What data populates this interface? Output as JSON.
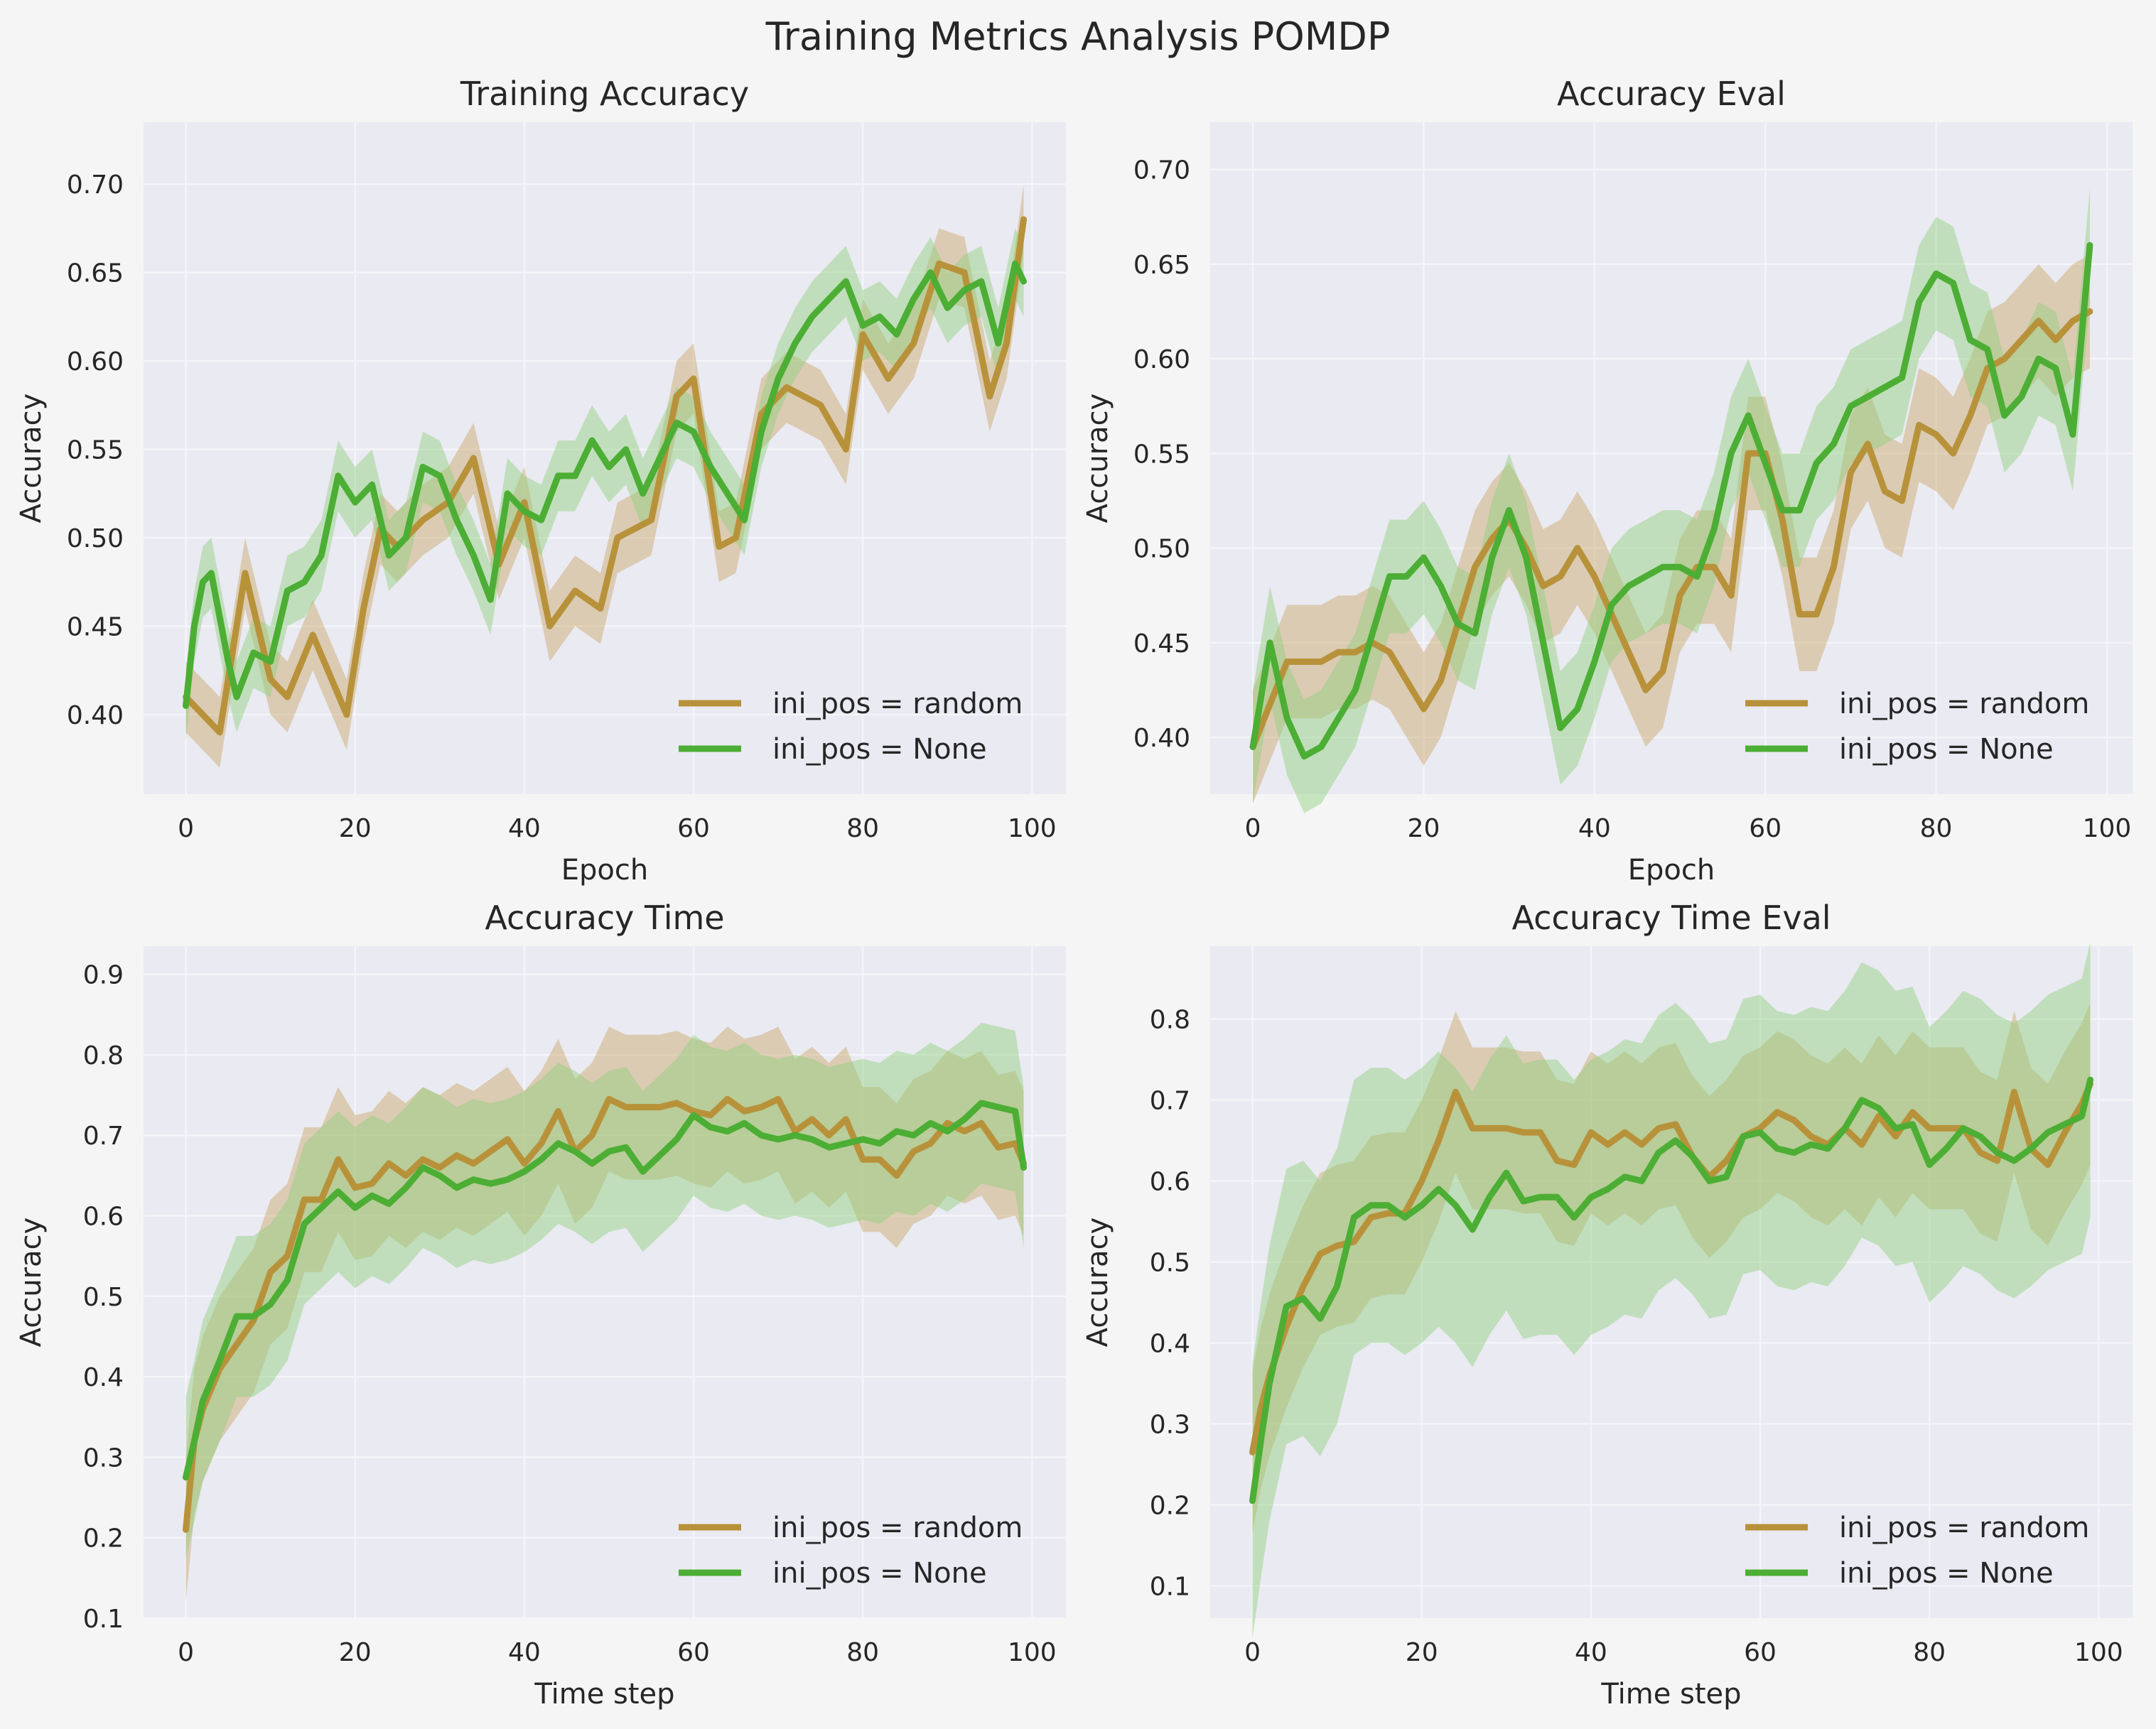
{
  "suptitle": "Training Metrics Analysis POMDP",
  "colors": {
    "background": "#f5f5f5",
    "axes_bg": "#eaeaf2",
    "grid": "#f4f4f9",
    "text": "#262626",
    "random": "#b8923a",
    "none": "#4cae34",
    "random_band": "#c9a765",
    "none_band": "#8fd07a"
  },
  "chart_data": [
    {
      "type": "line",
      "title": "Training Accuracy",
      "xlabel": "Epoch",
      "ylabel": "Accuracy",
      "xlim": [
        -5,
        104
      ],
      "ylim": [
        0.355,
        0.735
      ],
      "xticks": [
        0,
        20,
        40,
        60,
        80,
        100
      ],
      "yticks": [
        0.4,
        0.45,
        0.5,
        0.55,
        0.6,
        0.65,
        0.7
      ],
      "ytick_labels": [
        "0.40",
        "0.45",
        "0.50",
        "0.55",
        "0.60",
        "0.65",
        "0.70"
      ],
      "grid": true,
      "legend_position": "lower right",
      "legend": [
        "ini_pos = random",
        "ini_pos = None"
      ],
      "series": [
        {
          "name": "ini_pos = random",
          "color_key": "random",
          "x": [
            0,
            4,
            7,
            10,
            12,
            15,
            19,
            21,
            23,
            25,
            28,
            31,
            34,
            37,
            40,
            43,
            46,
            49,
            51,
            55,
            58,
            60,
            63,
            65,
            68,
            71,
            75,
            78,
            80,
            83,
            86,
            89,
            92,
            95,
            97,
            99
          ],
          "y": [
            0.41,
            0.39,
            0.48,
            0.42,
            0.41,
            0.445,
            0.4,
            0.46,
            0.505,
            0.495,
            0.51,
            0.52,
            0.545,
            0.485,
            0.52,
            0.45,
            0.47,
            0.46,
            0.5,
            0.51,
            0.58,
            0.59,
            0.495,
            0.5,
            0.57,
            0.585,
            0.575,
            0.55,
            0.615,
            0.59,
            0.61,
            0.655,
            0.65,
            0.58,
            0.61,
            0.68
          ],
          "band": 0.02
        },
        {
          "name": "ini_pos = None",
          "color_key": "none",
          "x": [
            0,
            1,
            2,
            3,
            5,
            6,
            8,
            10,
            12,
            14,
            16,
            18,
            20,
            22,
            24,
            26,
            28,
            30,
            32,
            34,
            36,
            38,
            40,
            42,
            44,
            46,
            48,
            50,
            52,
            54,
            56,
            58,
            60,
            62,
            64,
            66,
            68,
            70,
            72,
            74,
            76,
            78,
            80,
            82,
            84,
            86,
            88,
            90,
            92,
            94,
            96,
            98,
            99
          ],
          "y": [
            0.405,
            0.45,
            0.475,
            0.48,
            0.43,
            0.41,
            0.435,
            0.43,
            0.47,
            0.475,
            0.49,
            0.535,
            0.52,
            0.53,
            0.49,
            0.5,
            0.54,
            0.535,
            0.51,
            0.49,
            0.465,
            0.525,
            0.515,
            0.51,
            0.535,
            0.535,
            0.555,
            0.54,
            0.55,
            0.525,
            0.545,
            0.565,
            0.56,
            0.54,
            0.525,
            0.51,
            0.56,
            0.59,
            0.61,
            0.625,
            0.635,
            0.645,
            0.62,
            0.625,
            0.615,
            0.635,
            0.65,
            0.63,
            0.64,
            0.645,
            0.61,
            0.655,
            0.645
          ],
          "band": 0.02
        }
      ]
    },
    {
      "type": "line",
      "title": "Accuracy Eval",
      "xlabel": "Epoch",
      "ylabel": "Accuracy",
      "xlim": [
        -5,
        103
      ],
      "ylim": [
        0.37,
        0.725
      ],
      "xticks": [
        0,
        20,
        40,
        60,
        80,
        100
      ],
      "yticks": [
        0.4,
        0.45,
        0.5,
        0.55,
        0.6,
        0.65,
        0.7
      ],
      "ytick_labels": [
        "0.40",
        "0.45",
        "0.50",
        "0.55",
        "0.60",
        "0.65",
        "0.70"
      ],
      "grid": true,
      "legend_position": "lower right",
      "legend": [
        "ini_pos = random",
        "ini_pos = None"
      ],
      "series": [
        {
          "name": "ini_pos = random",
          "color_key": "random",
          "x": [
            0,
            4,
            6,
            8,
            10,
            12,
            14,
            16,
            18,
            20,
            22,
            24,
            26,
            28,
            30,
            32,
            34,
            36,
            38,
            40,
            42,
            44,
            46,
            48,
            50,
            52,
            54,
            56,
            58,
            60,
            62,
            64,
            66,
            68,
            70,
            72,
            74,
            76,
            78,
            80,
            82,
            84,
            86,
            88,
            90,
            92,
            94,
            96,
            98
          ],
          "y": [
            0.395,
            0.44,
            0.44,
            0.44,
            0.445,
            0.445,
            0.45,
            0.445,
            0.43,
            0.415,
            0.43,
            0.46,
            0.49,
            0.505,
            0.515,
            0.5,
            0.48,
            0.485,
            0.5,
            0.485,
            0.465,
            0.445,
            0.425,
            0.435,
            0.475,
            0.49,
            0.49,
            0.475,
            0.55,
            0.55,
            0.515,
            0.465,
            0.465,
            0.49,
            0.54,
            0.555,
            0.53,
            0.525,
            0.565,
            0.56,
            0.55,
            0.57,
            0.595,
            0.6,
            0.61,
            0.62,
            0.61,
            0.62,
            0.625
          ],
          "band": 0.03
        },
        {
          "name": "ini_pos = None",
          "color_key": "none",
          "x": [
            0,
            2,
            4,
            6,
            8,
            10,
            12,
            14,
            16,
            18,
            20,
            22,
            24,
            26,
            28,
            30,
            32,
            34,
            36,
            38,
            40,
            42,
            44,
            46,
            48,
            50,
            52,
            54,
            56,
            58,
            60,
            62,
            64,
            66,
            68,
            70,
            72,
            74,
            76,
            78,
            80,
            82,
            84,
            86,
            88,
            90,
            92,
            94,
            96,
            98
          ],
          "y": [
            0.395,
            0.45,
            0.41,
            0.39,
            0.395,
            0.41,
            0.425,
            0.455,
            0.485,
            0.485,
            0.495,
            0.48,
            0.46,
            0.455,
            0.495,
            0.52,
            0.495,
            0.45,
            0.405,
            0.415,
            0.44,
            0.47,
            0.48,
            0.485,
            0.49,
            0.49,
            0.485,
            0.51,
            0.55,
            0.57,
            0.545,
            0.52,
            0.52,
            0.545,
            0.555,
            0.575,
            0.58,
            0.585,
            0.59,
            0.63,
            0.645,
            0.64,
            0.61,
            0.605,
            0.57,
            0.58,
            0.6,
            0.595,
            0.56,
            0.66
          ],
          "band": 0.03
        }
      ]
    },
    {
      "type": "line",
      "title": "Accuracy Time",
      "xlabel": "Time step",
      "ylabel": "Accuracy",
      "xlim": [
        -5,
        104
      ],
      "ylim": [
        0.1,
        0.935
      ],
      "xticks": [
        0,
        20,
        40,
        60,
        80,
        100
      ],
      "yticks": [
        0.1,
        0.2,
        0.3,
        0.4,
        0.5,
        0.6,
        0.7,
        0.8,
        0.9
      ],
      "ytick_labels": [
        "0.1",
        "0.2",
        "0.3",
        "0.4",
        "0.5",
        "0.6",
        "0.7",
        "0.8",
        "0.9"
      ],
      "grid": true,
      "legend_position": "lower right",
      "legend": [
        "ini_pos = random",
        "ini_pos = None"
      ],
      "series": [
        {
          "name": "ini_pos = random",
          "color_key": "random",
          "x": [
            0,
            1,
            2,
            4,
            6,
            8,
            10,
            12,
            14,
            16,
            18,
            20,
            22,
            24,
            26,
            28,
            30,
            32,
            34,
            36,
            38,
            40,
            42,
            44,
            46,
            48,
            50,
            52,
            54,
            56,
            58,
            60,
            62,
            64,
            66,
            68,
            70,
            72,
            74,
            76,
            78,
            80,
            82,
            84,
            86,
            88,
            90,
            92,
            94,
            96,
            98,
            99
          ],
          "y": [
            0.21,
            0.32,
            0.36,
            0.41,
            0.44,
            0.47,
            0.53,
            0.55,
            0.62,
            0.62,
            0.67,
            0.635,
            0.64,
            0.665,
            0.65,
            0.67,
            0.66,
            0.675,
            0.665,
            0.68,
            0.695,
            0.665,
            0.69,
            0.73,
            0.68,
            0.7,
            0.745,
            0.735,
            0.735,
            0.735,
            0.74,
            0.73,
            0.725,
            0.745,
            0.73,
            0.735,
            0.745,
            0.705,
            0.72,
            0.7,
            0.72,
            0.67,
            0.67,
            0.65,
            0.68,
            0.69,
            0.715,
            0.705,
            0.715,
            0.685,
            0.69,
            0.665
          ],
          "band": 0.09
        },
        {
          "name": "ini_pos = None",
          "color_key": "none",
          "x": [
            0,
            1,
            2,
            4,
            6,
            8,
            10,
            12,
            14,
            16,
            18,
            20,
            22,
            24,
            26,
            28,
            30,
            32,
            34,
            36,
            38,
            40,
            42,
            44,
            46,
            48,
            50,
            52,
            54,
            56,
            58,
            60,
            62,
            64,
            66,
            68,
            70,
            72,
            74,
            76,
            78,
            80,
            82,
            84,
            86,
            88,
            90,
            92,
            94,
            96,
            98,
            99
          ],
          "y": [
            0.275,
            0.32,
            0.37,
            0.42,
            0.475,
            0.475,
            0.49,
            0.52,
            0.59,
            0.61,
            0.63,
            0.61,
            0.625,
            0.615,
            0.635,
            0.66,
            0.65,
            0.635,
            0.645,
            0.64,
            0.645,
            0.655,
            0.67,
            0.69,
            0.68,
            0.665,
            0.68,
            0.685,
            0.655,
            0.675,
            0.695,
            0.725,
            0.71,
            0.705,
            0.715,
            0.7,
            0.695,
            0.7,
            0.695,
            0.685,
            0.69,
            0.695,
            0.69,
            0.705,
            0.7,
            0.715,
            0.705,
            0.72,
            0.74,
            0.735,
            0.73,
            0.66
          ],
          "band": 0.1
        }
      ]
    },
    {
      "type": "line",
      "title": "Accuracy Time Eval",
      "xlabel": "Time step",
      "ylabel": "Accuracy",
      "xlim": [
        -5,
        104
      ],
      "ylim": [
        0.06,
        0.89
      ],
      "xticks": [
        0,
        20,
        40,
        60,
        80,
        100
      ],
      "yticks": [
        0.1,
        0.2,
        0.3,
        0.4,
        0.5,
        0.6,
        0.7,
        0.8
      ],
      "ytick_labels": [
        "0.1",
        "0.2",
        "0.3",
        "0.4",
        "0.5",
        "0.6",
        "0.7",
        "0.8"
      ],
      "grid": true,
      "legend_position": "lower right",
      "legend": [
        "ini_pos = random",
        "ini_pos = None"
      ],
      "series": [
        {
          "name": "ini_pos = random",
          "color_key": "random",
          "x": [
            0,
            1,
            2,
            4,
            6,
            8,
            10,
            12,
            14,
            16,
            18,
            20,
            22,
            24,
            26,
            28,
            30,
            32,
            34,
            36,
            38,
            40,
            42,
            44,
            46,
            48,
            50,
            52,
            54,
            56,
            58,
            60,
            62,
            64,
            66,
            68,
            70,
            72,
            74,
            76,
            78,
            80,
            82,
            84,
            86,
            88,
            90,
            92,
            94,
            96,
            98,
            99
          ],
          "y": [
            0.265,
            0.32,
            0.36,
            0.42,
            0.47,
            0.51,
            0.52,
            0.525,
            0.555,
            0.56,
            0.56,
            0.6,
            0.65,
            0.71,
            0.665,
            0.665,
            0.665,
            0.66,
            0.66,
            0.625,
            0.62,
            0.66,
            0.645,
            0.66,
            0.645,
            0.665,
            0.67,
            0.63,
            0.605,
            0.625,
            0.655,
            0.665,
            0.685,
            0.675,
            0.655,
            0.645,
            0.665,
            0.645,
            0.68,
            0.655,
            0.685,
            0.665,
            0.665,
            0.665,
            0.635,
            0.625,
            0.71,
            0.64,
            0.62,
            0.66,
            0.695,
            0.72
          ],
          "band": 0.1
        },
        {
          "name": "ini_pos = None",
          "color_key": "none",
          "x": [
            0,
            1,
            2,
            4,
            6,
            8,
            10,
            12,
            14,
            16,
            18,
            20,
            22,
            24,
            26,
            28,
            30,
            32,
            34,
            36,
            38,
            40,
            42,
            44,
            46,
            48,
            50,
            52,
            54,
            56,
            58,
            60,
            62,
            64,
            66,
            68,
            70,
            72,
            74,
            76,
            78,
            80,
            82,
            84,
            86,
            88,
            90,
            92,
            94,
            96,
            98,
            99
          ],
          "y": [
            0.205,
            0.28,
            0.35,
            0.445,
            0.455,
            0.43,
            0.47,
            0.555,
            0.57,
            0.57,
            0.555,
            0.57,
            0.59,
            0.57,
            0.54,
            0.58,
            0.61,
            0.575,
            0.58,
            0.58,
            0.555,
            0.58,
            0.59,
            0.605,
            0.6,
            0.635,
            0.65,
            0.63,
            0.6,
            0.605,
            0.655,
            0.66,
            0.64,
            0.635,
            0.645,
            0.64,
            0.665,
            0.7,
            0.69,
            0.665,
            0.67,
            0.62,
            0.64,
            0.665,
            0.655,
            0.635,
            0.625,
            0.64,
            0.66,
            0.67,
            0.68,
            0.725
          ],
          "band": 0.17
        }
      ]
    }
  ]
}
